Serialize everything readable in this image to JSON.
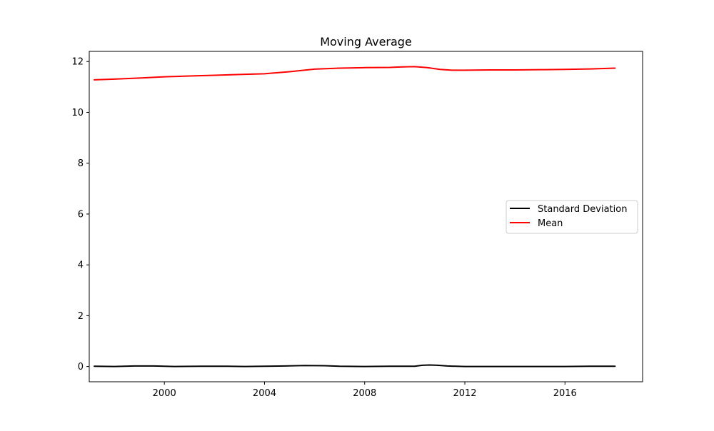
{
  "chart_data": {
    "type": "line",
    "title": "Moving Average",
    "xlabel": "",
    "ylabel": "",
    "xlim": [
      1997.0,
      2019.1
    ],
    "ylim": [
      -0.6,
      12.4
    ],
    "x_ticks": [
      2000,
      2004,
      2008,
      2012,
      2016
    ],
    "x_tick_labels": [
      "2000",
      "2004",
      "2008",
      "2012",
      "2016"
    ],
    "y_ticks": [
      0,
      2,
      4,
      6,
      8,
      10,
      12
    ],
    "y_tick_labels": [
      "0",
      "2",
      "4",
      "6",
      "8",
      "10",
      "12"
    ],
    "grid": false,
    "legend_position": "center-right",
    "series": [
      {
        "name": "Standard Deviation",
        "color": "#000000",
        "x": [
          1997.2,
          1998.0,
          1998.8,
          1999.6,
          2000.4,
          2001.5,
          2002.5,
          2003.2,
          2004.0,
          2004.8,
          2005.6,
          2006.4,
          2007.0,
          2008.0,
          2009.0,
          2010.0,
          2010.3,
          2010.6,
          2010.9,
          2011.3,
          2012.0,
          2013.0,
          2014.0,
          2015.0,
          2016.0,
          2017.0,
          2018.0
        ],
        "y": [
          0.01,
          0.0,
          0.02,
          0.02,
          0.0,
          0.01,
          0.01,
          0.0,
          0.01,
          0.02,
          0.04,
          0.03,
          0.01,
          0.0,
          0.01,
          0.01,
          0.05,
          0.06,
          0.05,
          0.02,
          0.0,
          0.0,
          0.0,
          0.0,
          0.0,
          0.01,
          0.01
        ]
      },
      {
        "name": "Mean",
        "color": "#ff0000",
        "x": [
          1997.2,
          1998.0,
          1999.0,
          2000.0,
          2001.0,
          2002.0,
          2003.0,
          2004.0,
          2005.0,
          2006.0,
          2007.0,
          2008.0,
          2009.0,
          2009.5,
          2010.0,
          2010.5,
          2011.0,
          2011.5,
          2012.0,
          2013.0,
          2014.0,
          2015.0,
          2016.0,
          2017.0,
          2018.0
        ],
        "y": [
          11.28,
          11.31,
          11.35,
          11.4,
          11.43,
          11.46,
          11.49,
          11.52,
          11.6,
          11.7,
          11.74,
          11.76,
          11.77,
          11.79,
          11.8,
          11.76,
          11.69,
          11.66,
          11.66,
          11.67,
          11.67,
          11.68,
          11.69,
          11.71,
          11.74
        ]
      }
    ]
  }
}
